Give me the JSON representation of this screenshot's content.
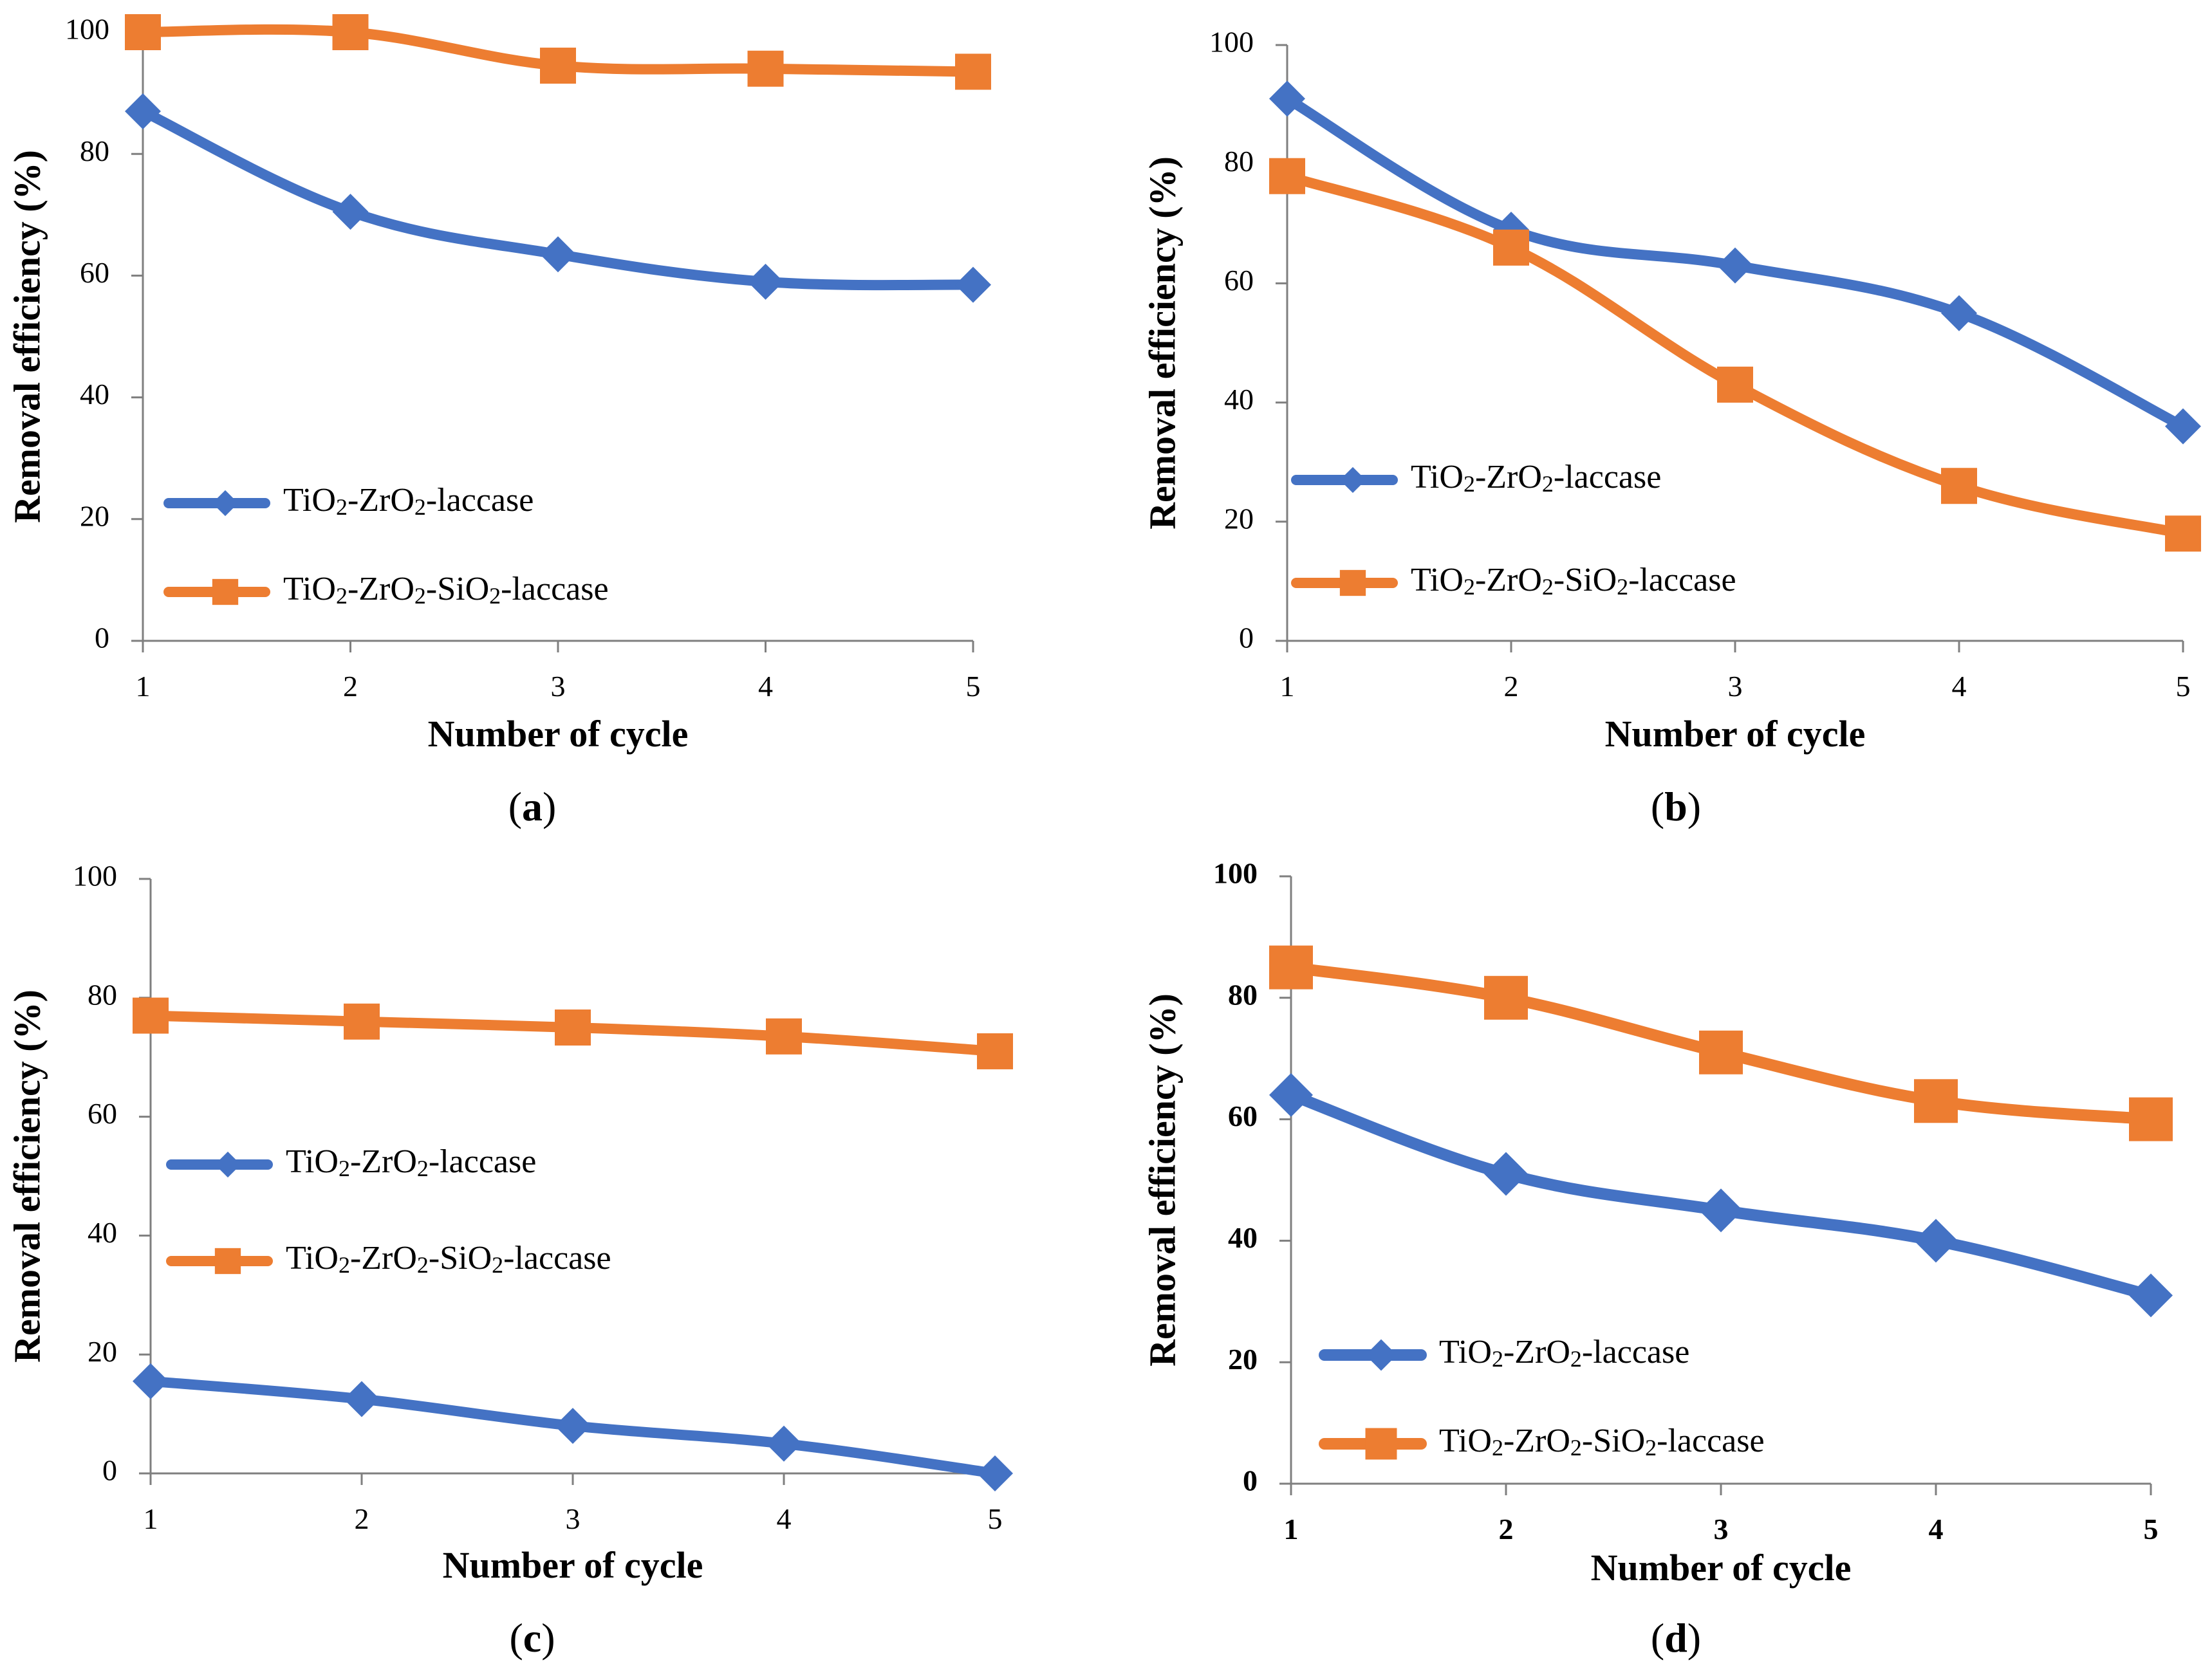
{
  "chart_data": [
    {
      "type": "line",
      "panel": "a",
      "xlabel": "Number of cycle",
      "ylabel": "Removal efficiency (%)",
      "ylim": [
        0,
        100
      ],
      "yticks": [
        "0",
        "20",
        "40",
        "60",
        "80",
        "100"
      ],
      "categories": [
        "1",
        "2",
        "3",
        "4",
        "5"
      ],
      "series": [
        {
          "name": "TiO2-ZrO2-laccase",
          "marker": "diamond",
          "color": "#4472C4",
          "values": [
            87,
            70.5,
            63.5,
            59,
            58.5
          ]
        },
        {
          "name": "TiO2-ZrO2-SiO2-laccase",
          "marker": "square",
          "color": "#ED7D31",
          "values": [
            100,
            100,
            94.5,
            94,
            93.5
          ]
        }
      ],
      "legend_order": [
        0,
        1
      ]
    },
    {
      "type": "line",
      "panel": "b",
      "xlabel": "Number of cycle",
      "ylabel": "Removal efficiency (%)",
      "ylim": [
        0,
        100
      ],
      "yticks": [
        "0",
        "20",
        "40",
        "60",
        "80",
        "100"
      ],
      "categories": [
        "1",
        "2",
        "3",
        "4",
        "5"
      ],
      "series": [
        {
          "name": "TiO2-ZrO2-laccase",
          "marker": "diamond",
          "color": "#4472C4",
          "values": [
            91,
            69,
            63,
            55,
            36
          ]
        },
        {
          "name": "TiO2-ZrO2-SiO2-laccase",
          "marker": "square",
          "color": "#ED7D31",
          "values": [
            78,
            66,
            43,
            26,
            18
          ]
        }
      ],
      "legend_order": [
        0,
        1
      ]
    },
    {
      "type": "line",
      "panel": "c",
      "xlabel": "Number of cycle",
      "ylabel": "Removal efficiency (%)",
      "ylim": [
        0,
        100
      ],
      "yticks": [
        "0",
        "20",
        "40",
        "60",
        "80",
        "100"
      ],
      "categories": [
        "1",
        "2",
        "3",
        "4",
        "5"
      ],
      "series": [
        {
          "name": "TiO2-ZrO2-laccase",
          "marker": "diamond",
          "color": "#4472C4",
          "values": [
            15.5,
            12.5,
            8,
            5,
            0
          ]
        },
        {
          "name": "TiO2-ZrO2-SiO2-laccase",
          "marker": "square",
          "color": "#ED7D31",
          "values": [
            77,
            76,
            75,
            73.5,
            71
          ]
        }
      ],
      "legend_order": [
        0,
        1
      ]
    },
    {
      "type": "line",
      "panel": "d",
      "xlabel": "Number of cycle",
      "ylabel": "Removal efficiency (%)",
      "ylim": [
        0,
        100
      ],
      "yticks": [
        "0",
        "20",
        "40",
        "60",
        "80",
        "100"
      ],
      "categories": [
        "1",
        "2",
        "3",
        "4",
        "5"
      ],
      "series": [
        {
          "name": "TiO2-ZrO2-laccase",
          "marker": "diamond",
          "color": "#4472C4",
          "values": [
            64,
            51,
            45,
            40,
            31
          ]
        },
        {
          "name": "TiO2-ZrO2-SiO2-laccase",
          "marker": "square",
          "color": "#ED7D31",
          "values": [
            85,
            80,
            71,
            63,
            60
          ]
        }
      ],
      "legend_order": [
        0,
        1
      ]
    }
  ],
  "labels": {
    "a": {
      "open": "(",
      "letter": "a",
      "close": ")"
    },
    "b": {
      "open": "(",
      "letter": "b",
      "close": ")"
    },
    "c": {
      "open": "(",
      "letter": "c",
      "close": ")"
    },
    "d": {
      "open": "(",
      "letter": "d",
      "close": ")"
    }
  }
}
